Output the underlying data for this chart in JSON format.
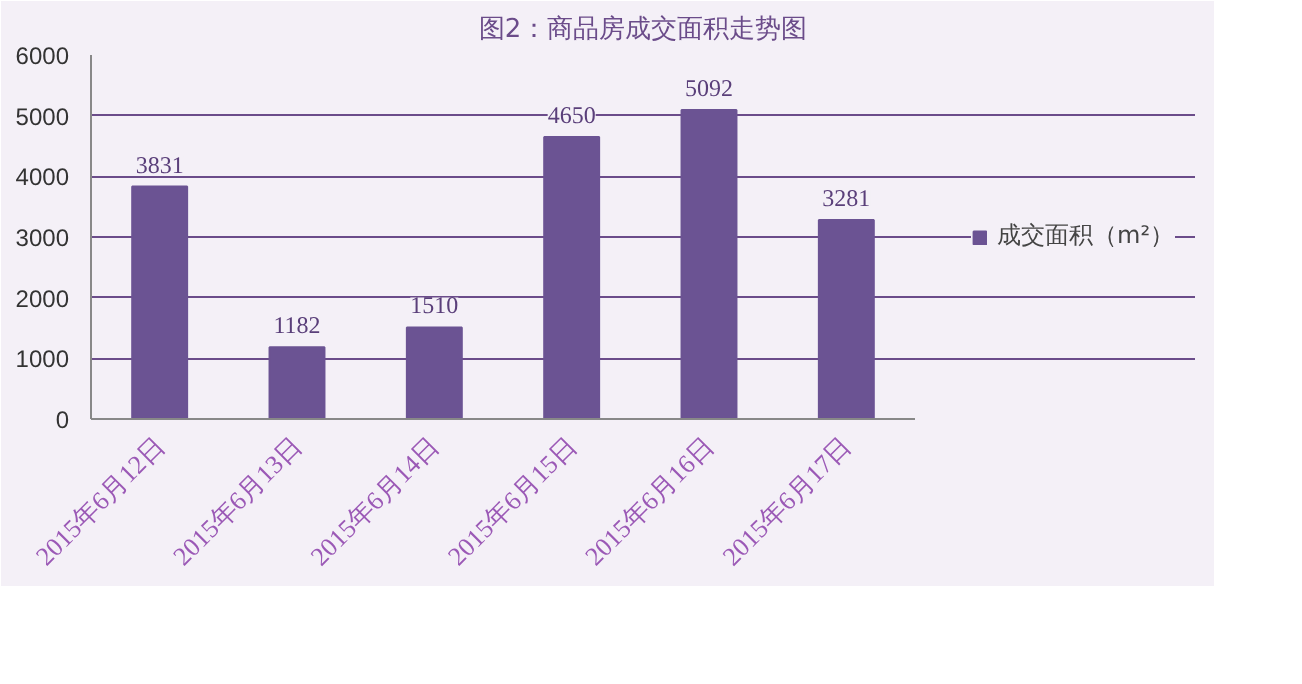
{
  "chart_data": {
    "type": "bar",
    "title": "图2：商品房成交面积走势图",
    "categories": [
      "2015年6月12日",
      "2015年6月13日",
      "2015年6月14日",
      "2015年6月15日",
      "2015年6月16日",
      "2015年6月17日"
    ],
    "series": [
      {
        "name": "成交面积（m²）",
        "color": "#6b5393",
        "values": [
          3831,
          1182,
          1510,
          4650,
          5092,
          3281
        ]
      }
    ],
    "ylim": [
      0,
      6000
    ],
    "yticks": [
      0,
      1000,
      2000,
      3000,
      4000,
      5000,
      6000
    ],
    "grid": "y",
    "legend": "right",
    "data_labels": true
  }
}
